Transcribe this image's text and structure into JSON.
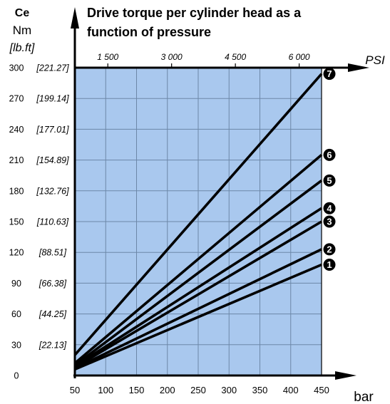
{
  "chart_data": {
    "type": "line",
    "title": "Drive torque per cylinder head as a function of pressure",
    "title_lines": [
      "Drive torque per cylinder head as a",
      "function of pressure"
    ],
    "y_axis": {
      "label_lines": [
        "Ce",
        "Nm",
        "[lb.ft]"
      ],
      "range": [
        0,
        300
      ],
      "ticks": [
        0,
        30,
        60,
        90,
        120,
        150,
        180,
        210,
        240,
        270,
        300
      ],
      "secondary_ticks": [
        "",
        "[22.13]",
        "[44.25]",
        "[66.38]",
        "[88.51]",
        "[110.63]",
        "[132.76]",
        "[154.89]",
        "[177.01]",
        "[199.14]",
        "[221.27]"
      ]
    },
    "x_axis": {
      "label": "bar",
      "range": [
        50,
        450
      ],
      "ticks": [
        50,
        100,
        150,
        200,
        250,
        300,
        350,
        400,
        450
      ]
    },
    "x_axis_top": {
      "label": "PSI",
      "ticks": [
        1500,
        3000,
        4500,
        6000
      ],
      "tick_labels": [
        "1 500",
        "3 000",
        "4 500",
        "6 000"
      ]
    },
    "grid": true,
    "plot_background": "#a9c8ee",
    "line_color": "#000000",
    "series": [
      {
        "name": "1",
        "x": [
          50,
          450
        ],
        "y": [
          6,
          108
        ]
      },
      {
        "name": "2",
        "x": [
          50,
          450
        ],
        "y": [
          7,
          123
        ]
      },
      {
        "name": "3",
        "x": [
          50,
          450
        ],
        "y": [
          8,
          150
        ]
      },
      {
        "name": "4",
        "x": [
          50,
          450
        ],
        "y": [
          9,
          163
        ]
      },
      {
        "name": "5",
        "x": [
          50,
          450
        ],
        "y": [
          10,
          190
        ]
      },
      {
        "name": "6",
        "x": [
          50,
          450
        ],
        "y": [
          12,
          215
        ]
      },
      {
        "name": "7",
        "x": [
          50,
          450
        ],
        "y": [
          20,
          294
        ]
      }
    ]
  }
}
